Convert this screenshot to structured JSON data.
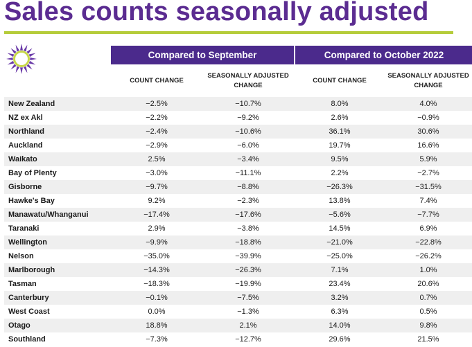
{
  "title": "Sales counts seasonally adjusted",
  "header": {
    "group1": "Compared to September",
    "group2": "Compared to October 2022",
    "col1": "COUNT CHANGE",
    "col2": "SEASONALLY ADJUSTED CHANGE",
    "col3": "COUNT CHANGE",
    "col4": "SEASONALLY ADJUSTED CHANGE"
  },
  "colors": {
    "title": "#5b2c91",
    "header_bg": "#4b2a8c",
    "rule": "#b5cc3a",
    "logo_rays": "#6a3aa8",
    "logo_ring": "#c8d84a"
  },
  "logo_icon": "sun-logo-icon",
  "rows": [
    {
      "region": "New Zealand",
      "c1": "−2.5%",
      "c2": "−10.7%",
      "c3": "8.0%",
      "c4": "4.0%"
    },
    {
      "region": "NZ ex Akl",
      "c1": "−2.2%",
      "c2": "−9.2%",
      "c3": "2.6%",
      "c4": "−0.9%"
    },
    {
      "region": "Northland",
      "c1": "−2.4%",
      "c2": "−10.6%",
      "c3": "36.1%",
      "c4": "30.6%"
    },
    {
      "region": "Auckland",
      "c1": "−2.9%",
      "c2": "−6.0%",
      "c3": "19.7%",
      "c4": "16.6%"
    },
    {
      "region": "Waikato",
      "c1": "2.5%",
      "c2": "−3.4%",
      "c3": "9.5%",
      "c4": "5.9%"
    },
    {
      "region": "Bay of Plenty",
      "c1": "−3.0%",
      "c2": "−11.1%",
      "c3": "2.2%",
      "c4": "−2.7%"
    },
    {
      "region": "Gisborne",
      "c1": "−9.7%",
      "c2": "−8.8%",
      "c3": "−26.3%",
      "c4": "−31.5%"
    },
    {
      "region": "Hawke's Bay",
      "c1": "9.2%",
      "c2": "−2.3%",
      "c3": "13.8%",
      "c4": "7.4%"
    },
    {
      "region": "Manawatu/Whanganui",
      "c1": "−17.4%",
      "c2": "−17.6%",
      "c3": "−5.6%",
      "c4": "−7.7%"
    },
    {
      "region": "Taranaki",
      "c1": "2.9%",
      "c2": "−3.8%",
      "c3": "14.5%",
      "c4": "6.9%"
    },
    {
      "region": "Wellington",
      "c1": "−9.9%",
      "c2": "−18.8%",
      "c3": "−21.0%",
      "c4": "−22.8%"
    },
    {
      "region": "Nelson",
      "c1": "−35.0%",
      "c2": "−39.9%",
      "c3": "−25.0%",
      "c4": "−26.2%"
    },
    {
      "region": "Marlborough",
      "c1": "−14.3%",
      "c2": "−26.3%",
      "c3": "7.1%",
      "c4": "1.0%"
    },
    {
      "region": "Tasman",
      "c1": "−18.3%",
      "c2": "−19.9%",
      "c3": "23.4%",
      "c4": "20.6%"
    },
    {
      "region": "Canterbury",
      "c1": "−0.1%",
      "c2": "−7.5%",
      "c3": "3.2%",
      "c4": "0.7%"
    },
    {
      "region": "West Coast",
      "c1": "0.0%",
      "c2": "−1.3%",
      "c3": "6.3%",
      "c4": "0.5%"
    },
    {
      "region": "Otago",
      "c1": "18.8%",
      "c2": "2.1%",
      "c3": "14.0%",
      "c4": "9.8%"
    },
    {
      "region": "Southland",
      "c1": "−7.3%",
      "c2": "−12.7%",
      "c3": "29.6%",
      "c4": "21.5%"
    }
  ]
}
